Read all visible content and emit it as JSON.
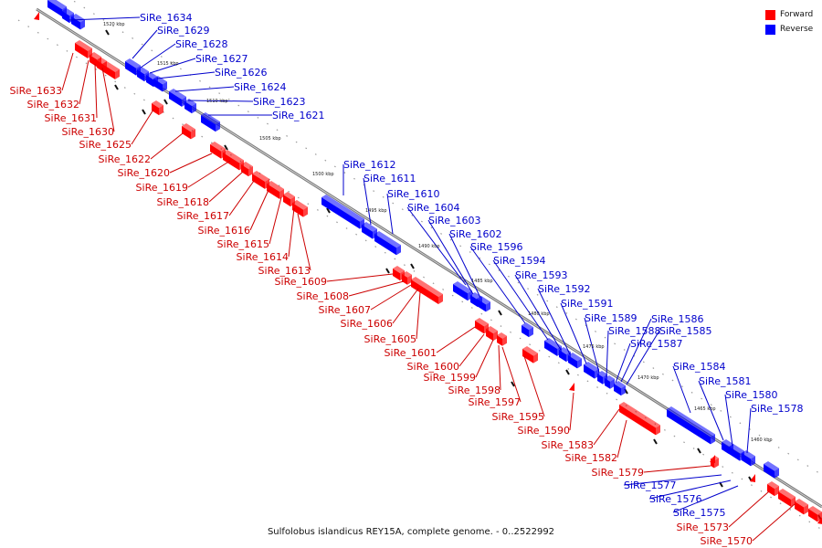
{
  "caption": "Sulfolobus islandicus REY15A, complete genome. - 0..2522992",
  "legend": [
    {
      "label": "Forward",
      "color": "#ff0000"
    },
    {
      "label": "Reverse",
      "color": "#0000ff"
    }
  ],
  "colors": {
    "forward": "#ff0000",
    "reverse": "#0000ff",
    "forward_text": "#cc0000",
    "reverse_text": "#0000cc"
  },
  "coordinate_labels": [
    "1520 kbp",
    "1515 kbp",
    "1510 kbp",
    "1505 kbp",
    "1500 kbp",
    "1495 kbp",
    "1490 kbp",
    "1485 kbp",
    "1480 kbp",
    "1475 kbp",
    "1470 kbp",
    "1465 kbp",
    "1460 kbp"
  ],
  "reverse_genes": [
    "SiRe_1634",
    "SiRe_1629",
    "SiRe_1628",
    "SiRe_1627",
    "SiRe_1626",
    "SiRe_1624",
    "SiRe_1623",
    "SiRe_1621",
    "SiRe_1612",
    "SiRe_1611",
    "SiRe_1610",
    "SiRe_1604",
    "SiRe_1603",
    "SiRe_1602",
    "SiRe_1596",
    "SiRe_1594",
    "SiRe_1593",
    "SiRe_1592",
    "SiRe_1591",
    "SiRe_1589",
    "SiRe_1588",
    "SiRe_1587",
    "SiRe_1586",
    "SiRe_1585",
    "SiRe_1584",
    "SiRe_1581",
    "SiRe_1580",
    "SiRe_1578",
    "SiRe_1577",
    "SiRe_1576",
    "SiRe_1575"
  ],
  "forward_genes": [
    "SiRe_1633",
    "SiRe_1632",
    "SiRe_1631",
    "SiRe_1630",
    "SiRe_1625",
    "SiRe_1622",
    "SiRe_1620",
    "SiRe_1619",
    "SiRe_1618",
    "SiRe_1617",
    "SiRe_1616",
    "SiRe_1615",
    "SiRe_1614",
    "SiRe_1613",
    "SiRe_1609",
    "SiRe_1608",
    "SiRe_1607",
    "SiRe_1606",
    "SiRe_1605",
    "SiRe_1601",
    "SiRe_1600",
    "SiRe_1599",
    "SiRe_1598",
    "SiRe_1597",
    "SiRe_1595",
    "SiRe_1590",
    "SiRe_1583",
    "SiRe_1582",
    "SiRe_1579",
    "SiRe_1573",
    "SiRe_1570"
  ]
}
